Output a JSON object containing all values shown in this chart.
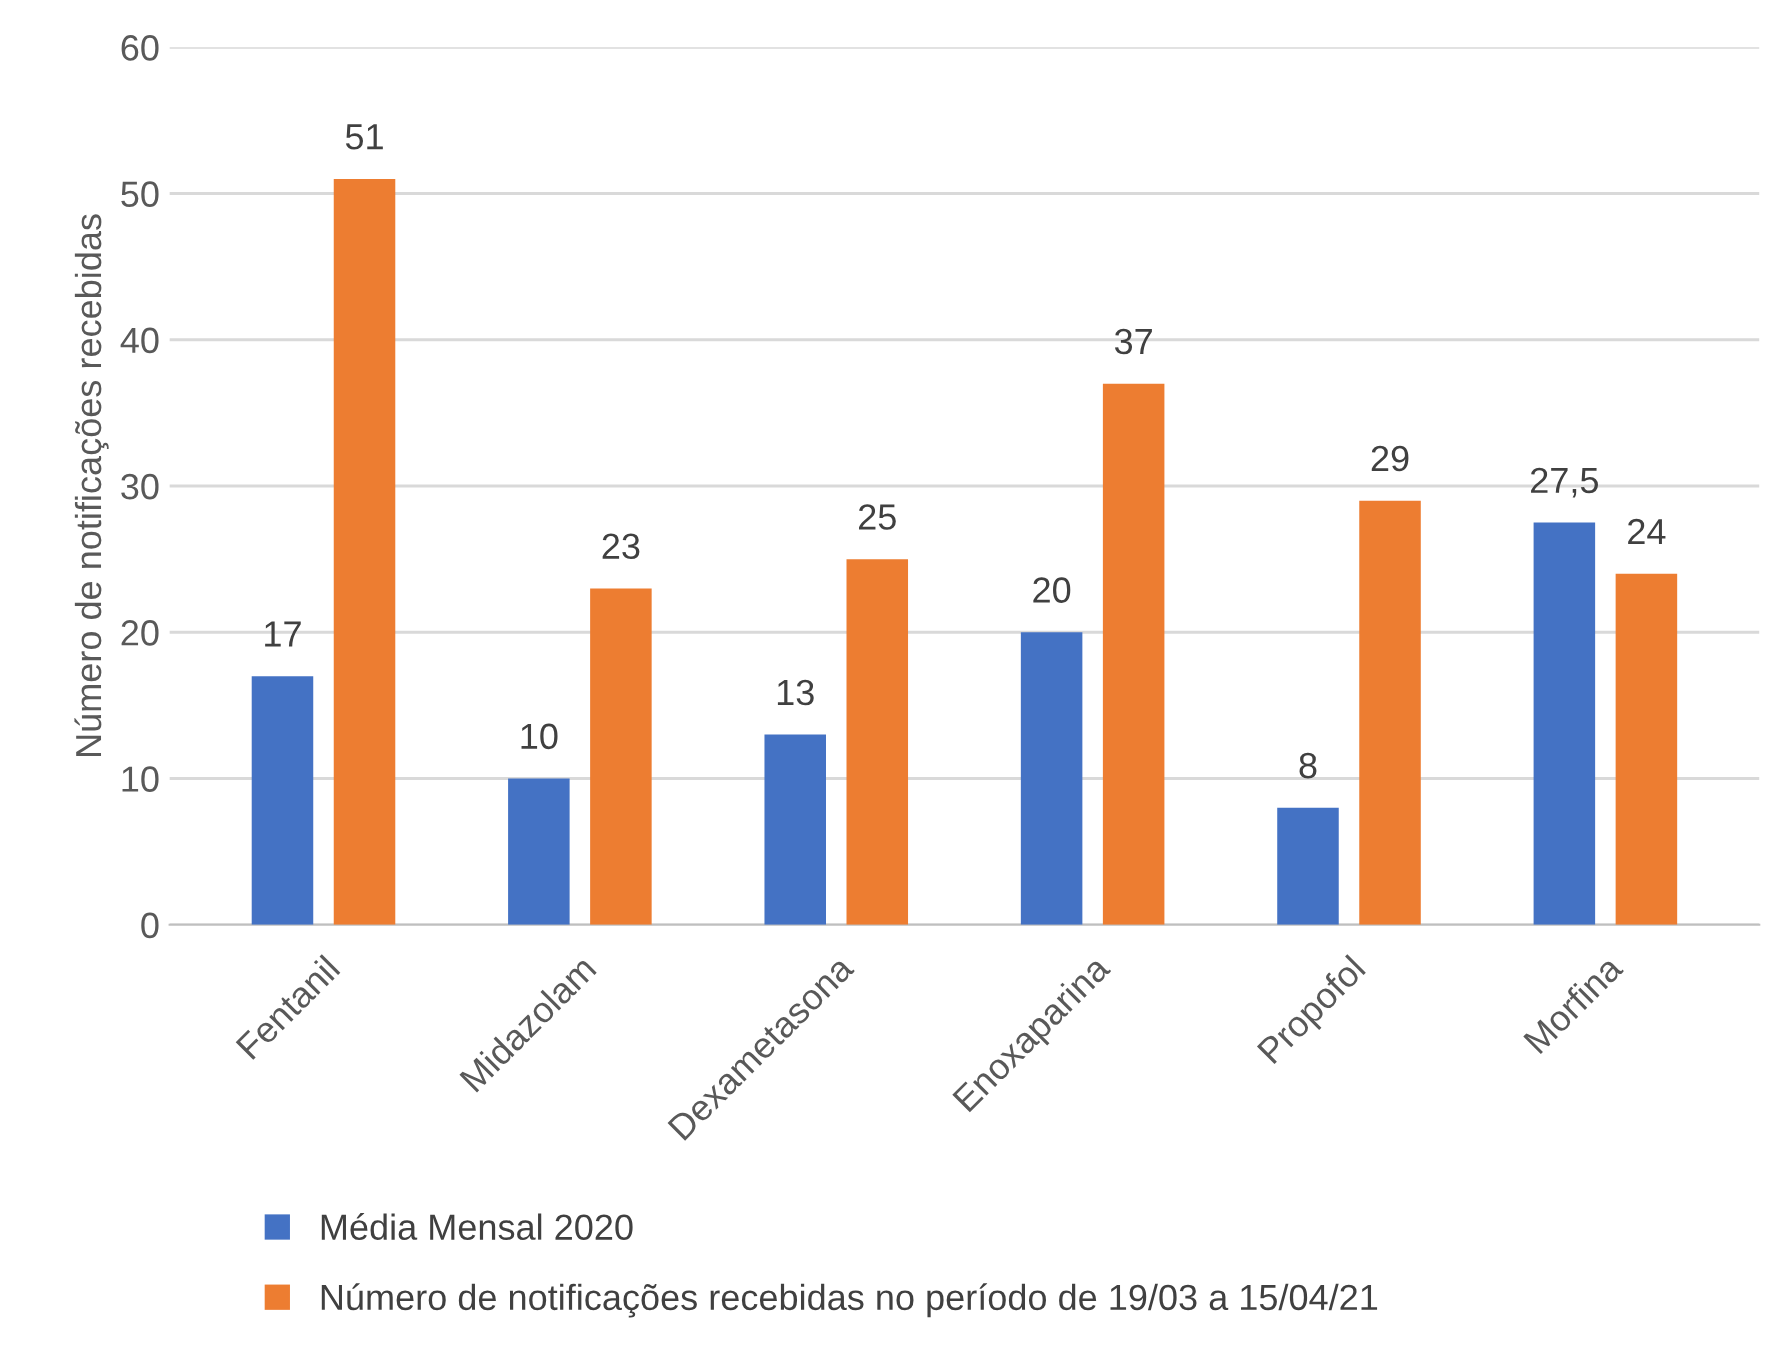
{
  "chart_data": {
    "type": "bar",
    "ylabel": "Número de notificações recebidas",
    "categories": [
      "Fentanil",
      "Midazolam",
      "Dexametasona",
      "Enoxaparina",
      "Propofol",
      "Morfina"
    ],
    "series": [
      {
        "name": "Média Mensal 2020",
        "color": "#4472c4",
        "values": [
          17,
          10,
          13,
          20,
          8,
          27.5
        ],
        "value_labels": [
          "17",
          "10",
          "13",
          "20",
          "8",
          "27,5"
        ]
      },
      {
        "name": "Número de notificações recebidas no período de 19/03 a 15/04/21",
        "color": "#ed7d31",
        "values": [
          51,
          23,
          25,
          37,
          29,
          24
        ],
        "value_labels": [
          "51",
          "23",
          "25",
          "37",
          "29",
          "24"
        ]
      }
    ],
    "ylim": [
      0,
      60
    ],
    "yticks": [
      0,
      10,
      20,
      30,
      40,
      50,
      60
    ],
    "grid": "y",
    "legend": "bottom"
  }
}
